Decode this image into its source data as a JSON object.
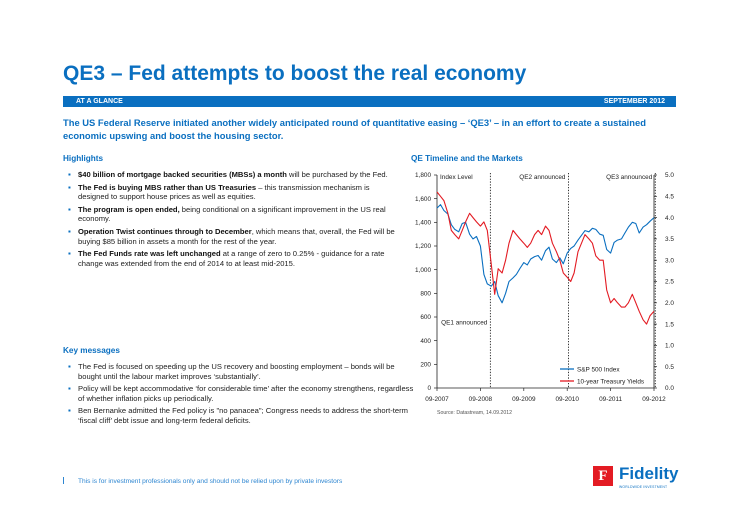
{
  "header": {
    "title": "QE3 – Fed attempts to boost the real economy",
    "band_left": "AT A GLANCE",
    "band_right": "SEPTEMBER 2012",
    "intro": "The US Federal Reserve initiated another widely anticipated round of quantitative easing – ‘QE3’ – in an effort to create a sustained economic upswing and boost the housing sector."
  },
  "highlights": {
    "heading": "Highlights",
    "items": [
      {
        "bold": "$40 billion of mortgage backed securities (MBSs) a month",
        "text": " will be purchased by the Fed."
      },
      {
        "bold": "The Fed is buying MBS rather than US Treasuries",
        "text": " – this transmission mechanism is designed to support house prices as well as equities."
      },
      {
        "bold": "The program is open ended,",
        "text": " being conditional on a significant improvement in the US real economy."
      },
      {
        "bold": "Operation Twist continues through to December",
        "text": ", which means that, overall, the Fed will be buying $85 billion in assets a month for the rest of the year."
      },
      {
        "bold": "The Fed Funds rate was left unchanged",
        "text": " at a range of zero to 0.25% - guidance for a rate change was extended from the end of 2014 to at least mid-2015."
      }
    ]
  },
  "key_messages": {
    "heading": "Key messages",
    "items": [
      "The Fed is focused on speeding up the US recovery and boosting employment – bonds will be bought until the labour market improves ‘substantially’.",
      "Policy will be kept accommodative ‘for considerable time’ after the economy strengthens, regardless of whether inflation picks up periodically.",
      "Ben Bernanke admitted the Fed policy is \"no panacea\"; Congress needs to address the short-term ‘fiscal cliff’ debt issue and long-term federal deficits."
    ]
  },
  "chart_section": {
    "heading": "QE Timeline and the Markets",
    "source": "Source: Datastream, 14.09.2012"
  },
  "chart_data": {
    "type": "line",
    "title": "QE Timeline and the Markets",
    "ylabel": "Index Level",
    "ylim": [
      0,
      1800
    ],
    "y_ticks": [
      "0",
      "200",
      "400",
      "600",
      "800",
      "1,000",
      "1,200",
      "1,400",
      "1,600",
      "1,800"
    ],
    "y2lim": [
      0,
      5
    ],
    "y2_ticks": [
      "0.0",
      "0.5",
      "1.0",
      "1.5",
      "2.0",
      "2.5",
      "3.0",
      "3.5",
      "4.0",
      "4.5",
      "5.0"
    ],
    "x_ticks": [
      "09-2007",
      "09-2008",
      "09-2009",
      "09-2010",
      "09-2011",
      "09-2012"
    ],
    "annotations": [
      {
        "label": "QE1 announced",
        "x": 2008.9
      },
      {
        "label": "QE2 announced",
        "x": 2010.7
      },
      {
        "label": "QE3 announced",
        "x": 2012.7
      }
    ],
    "legend_position": "bottom-right",
    "grid": false,
    "series": [
      {
        "name": "S&P 500 Index",
        "axis": "left",
        "color": "#0a6fc0",
        "x": [
          2007.67,
          2007.75,
          2007.83,
          2007.92,
          2008.0,
          2008.08,
          2008.17,
          2008.25,
          2008.33,
          2008.42,
          2008.5,
          2008.58,
          2008.67,
          2008.75,
          2008.83,
          2008.92,
          2009.0,
          2009.08,
          2009.17,
          2009.25,
          2009.33,
          2009.42,
          2009.5,
          2009.58,
          2009.67,
          2009.75,
          2009.83,
          2009.92,
          2010.0,
          2010.08,
          2010.17,
          2010.25,
          2010.33,
          2010.42,
          2010.5,
          2010.58,
          2010.67,
          2010.75,
          2010.83,
          2010.92,
          2011.0,
          2011.08,
          2011.17,
          2011.25,
          2011.33,
          2011.42,
          2011.5,
          2011.58,
          2011.67,
          2011.75,
          2011.83,
          2011.92,
          2012.0,
          2012.08,
          2012.17,
          2012.25,
          2012.33,
          2012.42,
          2012.5,
          2012.58,
          2012.67
        ],
        "values": [
          1520,
          1550,
          1500,
          1470,
          1380,
          1340,
          1320,
          1390,
          1400,
          1300,
          1260,
          1280,
          1200,
          960,
          880,
          860,
          900,
          780,
          720,
          800,
          900,
          930,
          960,
          1010,
          1060,
          1040,
          1090,
          1110,
          1120,
          1080,
          1160,
          1190,
          1090,
          1060,
          1100,
          1050,
          1140,
          1180,
          1200,
          1250,
          1290,
          1330,
          1320,
          1350,
          1340,
          1300,
          1290,
          1170,
          1140,
          1230,
          1250,
          1260,
          1310,
          1360,
          1400,
          1390,
          1310,
          1360,
          1380,
          1410,
          1440
        ]
      },
      {
        "name": "10-year Treasury Yields",
        "axis": "right",
        "color": "#e31b23",
        "x": [
          2007.67,
          2007.75,
          2007.83,
          2007.92,
          2008.0,
          2008.08,
          2008.17,
          2008.25,
          2008.33,
          2008.42,
          2008.5,
          2008.58,
          2008.67,
          2008.75,
          2008.83,
          2008.92,
          2009.0,
          2009.08,
          2009.17,
          2009.25,
          2009.33,
          2009.42,
          2009.5,
          2009.58,
          2009.67,
          2009.75,
          2009.83,
          2009.92,
          2010.0,
          2010.08,
          2010.17,
          2010.25,
          2010.33,
          2010.42,
          2010.5,
          2010.58,
          2010.67,
          2010.75,
          2010.83,
          2010.92,
          2011.0,
          2011.08,
          2011.17,
          2011.25,
          2011.33,
          2011.42,
          2011.5,
          2011.58,
          2011.67,
          2011.75,
          2011.83,
          2011.92,
          2012.0,
          2012.08,
          2012.17,
          2012.25,
          2012.33,
          2012.42,
          2012.5,
          2012.58,
          2012.67
        ],
        "values": [
          4.6,
          4.5,
          4.4,
          4.1,
          3.7,
          3.6,
          3.5,
          3.7,
          3.9,
          4.1,
          4.0,
          3.9,
          3.8,
          3.9,
          3.7,
          2.9,
          2.2,
          2.8,
          2.7,
          3.0,
          3.4,
          3.7,
          3.6,
          3.5,
          3.4,
          3.3,
          3.4,
          3.6,
          3.7,
          3.6,
          3.8,
          3.7,
          3.4,
          3.2,
          3.0,
          2.7,
          2.6,
          2.5,
          2.7,
          3.2,
          3.4,
          3.6,
          3.5,
          3.4,
          3.1,
          3.0,
          3.0,
          2.3,
          2.0,
          2.1,
          2.0,
          1.9,
          1.9,
          2.0,
          2.2,
          2.0,
          1.8,
          1.6,
          1.5,
          1.7,
          1.8
        ]
      }
    ]
  },
  "footer": {
    "disclaimer": "This is for investment professionals only and should not be relied upon by private investors",
    "logo_text": "Fidelity",
    "logo_mark": "F",
    "logo_sub": "WORLDWIDE INVESTMENT"
  }
}
